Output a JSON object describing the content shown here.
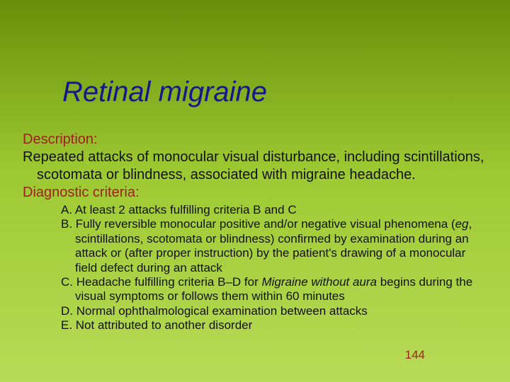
{
  "colors": {
    "title": "#17178a",
    "section_label": "#a02020",
    "body_text": "#111111",
    "bg_gradient_top": "#6b8e0a",
    "bg_gradient_mid": "#9dc932",
    "bg_gradient_bottom": "#b8db57"
  },
  "typography": {
    "title_fontsize": 40,
    "body_fontsize": 20,
    "criteria_fontsize": 17,
    "title_style": "italic"
  },
  "title": "Retinal migraine",
  "description_label": "Description:",
  "description_text": "Repeated attacks of monocular visual disturbance, including scintillations, scotomata or blindness, associated with migraine headache.",
  "diagnostic_label": "Diagnostic criteria:",
  "criteria": {
    "a": "A. At least 2 attacks fulfilling criteria B and C",
    "b_pre": "B. Fully reversible monocular positive and/or negative visual phenomena (",
    "b_eg": "eg",
    "b_post": ", scintillations, scotomata or blindness) confirmed by examination during an attack or (after proper instruction) by the patient's drawing of a monocular field defect during an attack",
    "c_pre": "C. Headache fulfilling criteria B–D for  ",
    "c_ital": "Migraine without aura",
    "c_post": " begins during the visual symptoms or follows them within 60 minutes",
    "d": "D. Normal ophthalmological examination between attacks",
    "e": "E. Not attributed to another disorder"
  },
  "page_number": "144"
}
